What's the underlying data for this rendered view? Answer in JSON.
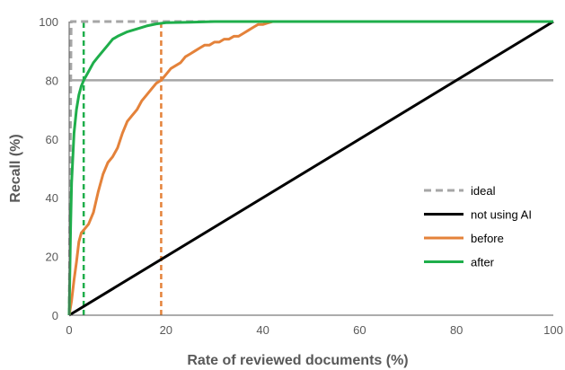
{
  "chart_data": {
    "type": "line",
    "title": "",
    "xlabel": "Rate of reviewed documents (%)",
    "ylabel": "Recall (%)",
    "xlim": [
      0,
      100
    ],
    "ylim": [
      0,
      100
    ],
    "xticks": [
      0,
      20,
      40,
      60,
      80,
      100
    ],
    "yticks": [
      0,
      20,
      40,
      60,
      80,
      100
    ],
    "grid": false,
    "legend_position": "right-middle",
    "reference_lines": [
      {
        "name": "recall-80-line",
        "orientation": "horizontal",
        "value": 80,
        "color": "#a6a6a6"
      },
      {
        "name": "after-cutoff-line",
        "orientation": "vertical",
        "value": 3,
        "color": "#1fae4b",
        "dashed": true
      },
      {
        "name": "before-cutoff-line",
        "orientation": "vertical",
        "value": 19,
        "color": "#e4823a",
        "dashed": true
      }
    ],
    "series": [
      {
        "name": "ideal",
        "color": "#a6a6a6",
        "dashed": true,
        "x": [
          0,
          0.4,
          100
        ],
        "y": [
          0,
          100,
          100
        ]
      },
      {
        "name": "not using AI",
        "color": "#000000",
        "dashed": false,
        "x": [
          0,
          100
        ],
        "y": [
          0,
          100
        ]
      },
      {
        "name": "before",
        "color": "#e4823a",
        "dashed": false,
        "x": [
          0,
          0.5,
          1,
          1.5,
          2,
          2.5,
          3,
          4,
          5,
          6,
          7,
          8,
          9,
          10,
          11,
          12,
          13,
          14,
          15,
          16,
          17,
          18,
          19,
          20,
          21,
          22,
          23,
          24,
          25,
          26,
          27,
          28,
          29,
          30,
          31,
          32,
          33,
          34,
          35,
          36,
          37,
          38,
          39,
          40,
          41,
          42,
          43,
          44,
          45,
          50,
          100
        ],
        "y": [
          0,
          5,
          12,
          18,
          25,
          28,
          29,
          31,
          35,
          42,
          48,
          52,
          54,
          57,
          62,
          66,
          68,
          70,
          73,
          75,
          77,
          79,
          80,
          82,
          84,
          85,
          86,
          88,
          89,
          90,
          91,
          92,
          92,
          93,
          93,
          94,
          94,
          95,
          95,
          96,
          97,
          98,
          99,
          99,
          99.5,
          100,
          100,
          100,
          100,
          100,
          100
        ]
      },
      {
        "name": "after",
        "color": "#1fae4b",
        "dashed": false,
        "x": [
          0,
          0.3,
          0.5,
          1,
          1.5,
          2,
          2.5,
          3,
          4,
          5,
          6,
          7,
          8,
          9,
          10,
          12,
          14,
          16,
          18,
          20,
          25,
          30,
          35,
          40,
          100
        ],
        "y": [
          0,
          30,
          45,
          62,
          70,
          75,
          78,
          80,
          83,
          86,
          88,
          90,
          92,
          94,
          95,
          96.5,
          97.5,
          98.5,
          99.2,
          99.6,
          99.8,
          100,
          100,
          100,
          100
        ]
      }
    ]
  }
}
